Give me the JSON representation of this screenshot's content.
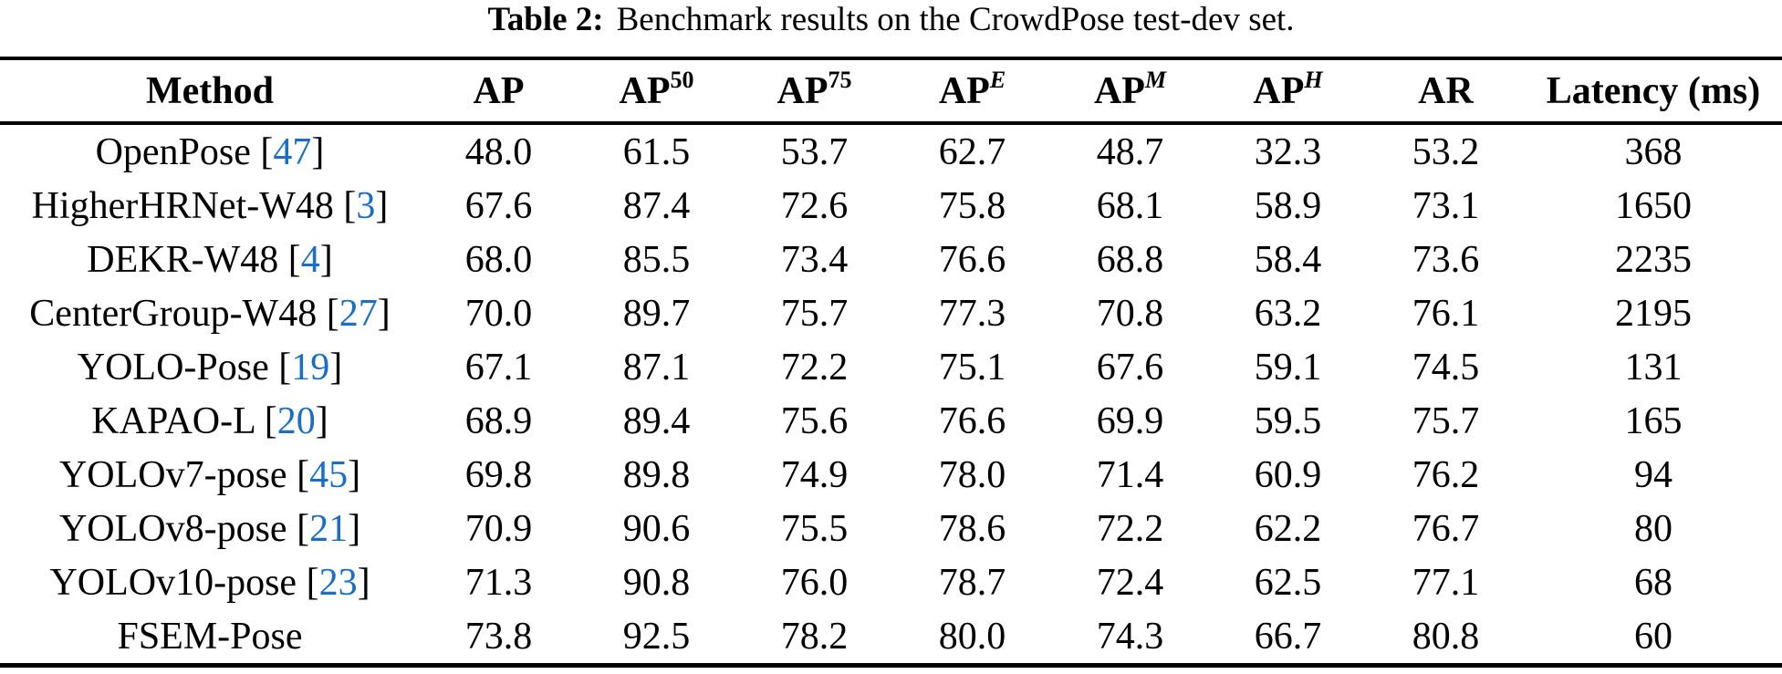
{
  "title": {
    "label": "Table 2:",
    "caption": "Benchmark results on the CrowdPose test-dev set."
  },
  "link_color": "#1a6fc4",
  "table": {
    "columns": [
      {
        "key": "method",
        "label": "Method"
      },
      {
        "key": "ap",
        "label": "AP"
      },
      {
        "key": "ap50",
        "label": "AP",
        "sup": "50",
        "sup_style": "upright"
      },
      {
        "key": "ap75",
        "label": "AP",
        "sup": "75",
        "sup_style": "upright"
      },
      {
        "key": "apE",
        "label": "AP",
        "sup": "E",
        "sup_style": "italic"
      },
      {
        "key": "apM",
        "label": "AP",
        "sup": "M",
        "sup_style": "italic"
      },
      {
        "key": "apH",
        "label": "AP",
        "sup": "H",
        "sup_style": "italic"
      },
      {
        "key": "ar",
        "label": "AR"
      },
      {
        "key": "latency",
        "label": "Latency (ms)"
      }
    ],
    "rows": [
      {
        "method": "OpenPose",
        "cite": "47",
        "values": [
          "48.0",
          "61.5",
          "53.7",
          "62.7",
          "48.7",
          "32.3",
          "53.2",
          "368"
        ]
      },
      {
        "method": "HigherHRNet-W48",
        "cite": "3",
        "values": [
          "67.6",
          "87.4",
          "72.6",
          "75.8",
          "68.1",
          "58.9",
          "73.1",
          "1650"
        ]
      },
      {
        "method": "DEKR-W48",
        "cite": "4",
        "values": [
          "68.0",
          "85.5",
          "73.4",
          "76.6",
          "68.8",
          "58.4",
          "73.6",
          "2235"
        ]
      },
      {
        "method": "CenterGroup-W48",
        "cite": "27",
        "values": [
          "70.0",
          "89.7",
          "75.7",
          "77.3",
          "70.8",
          "63.2",
          "76.1",
          "2195"
        ]
      },
      {
        "method": "YOLO-Pose",
        "cite": "19",
        "values": [
          "67.1",
          "87.1",
          "72.2",
          "75.1",
          "67.6",
          "59.1",
          "74.5",
          "131"
        ]
      },
      {
        "method": "KAPAO-L",
        "cite": "20",
        "values": [
          "68.9",
          "89.4",
          "75.6",
          "76.6",
          "69.9",
          "59.5",
          "75.7",
          "165"
        ]
      },
      {
        "method": "YOLOv7-pose",
        "cite": "45",
        "values": [
          "69.8",
          "89.8",
          "74.9",
          "78.0",
          "71.4",
          "60.9",
          "76.2",
          "94"
        ]
      },
      {
        "method": "YOLOv8-pose",
        "cite": "21",
        "values": [
          "70.9",
          "90.6",
          "75.5",
          "78.6",
          "72.2",
          "62.2",
          "76.7",
          "80"
        ]
      },
      {
        "method": "YOLOv10-pose",
        "cite": "23",
        "values": [
          "71.3",
          "90.8",
          "76.0",
          "78.7",
          "72.4",
          "62.5",
          "77.1",
          "68"
        ]
      },
      {
        "method": "FSEM-Pose",
        "cite": null,
        "values": [
          "73.8",
          "92.5",
          "78.2",
          "80.0",
          "74.3",
          "66.7",
          "80.8",
          "60"
        ]
      }
    ]
  }
}
